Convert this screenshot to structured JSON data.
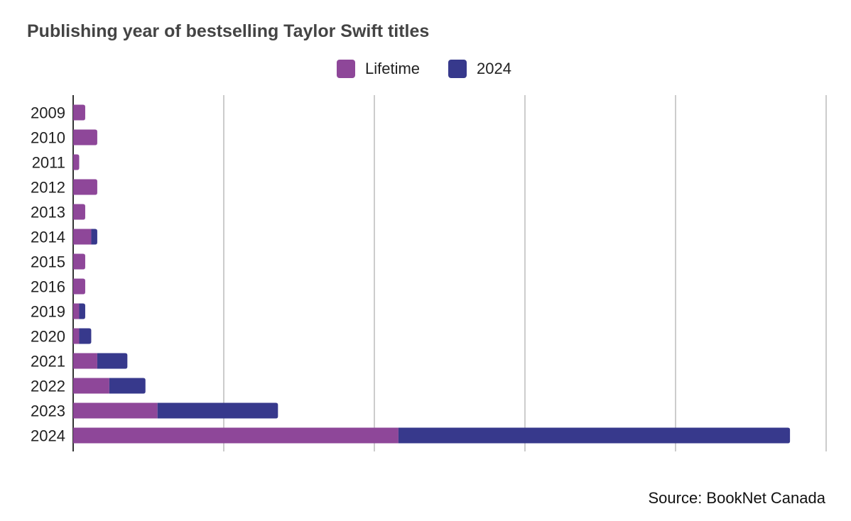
{
  "chart_data": {
    "type": "bar",
    "orientation": "horizontal",
    "stacked": true,
    "title": "Publishing year of bestselling Taylor Swift titles",
    "xlabel": "",
    "ylabel": "",
    "categories": [
      "2009",
      "2010",
      "2011",
      "2012",
      "2013",
      "2014",
      "2015",
      "2016",
      "2019",
      "2020",
      "2021",
      "2022",
      "2023",
      "2024"
    ],
    "series": [
      {
        "name": "Lifetime",
        "color": "#8E4799",
        "values": [
          2,
          4,
          1,
          4,
          2,
          3,
          2,
          2,
          1,
          1,
          4,
          6,
          14,
          54
        ]
      },
      {
        "name": "2024",
        "color": "#37398C",
        "values": [
          0,
          0,
          0,
          0,
          0,
          1,
          0,
          0,
          1,
          2,
          5,
          6,
          20,
          65
        ]
      }
    ],
    "xlim": [
      0,
      125
    ],
    "x_gridlines": [
      25,
      50,
      75,
      100,
      125
    ],
    "x_tick_labels_shown": false,
    "grid": true,
    "legend_position": "top-center",
    "source": "Source: BookNet Canada"
  }
}
